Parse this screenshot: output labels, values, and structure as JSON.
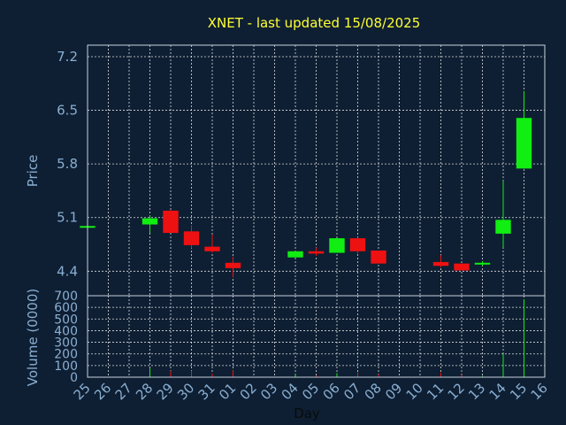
{
  "chart_data": [
    {
      "type": "candlestick",
      "title": "XNET - last updated 15/08/2025",
      "ylabel": "Price",
      "ylim": [
        4.08,
        7.35
      ],
      "yticks": [
        "7.2",
        "6.5",
        "5.8",
        "5.1",
        "4.4"
      ],
      "ytick_values": [
        7.2,
        6.5,
        5.8,
        5.1,
        4.4
      ],
      "grid": true,
      "colors": {
        "up": "#11ee11",
        "down": "#ee1111",
        "background": "#0e1f33",
        "text": "#8aaed1",
        "title": "#ffff33",
        "grid": "#ffffff"
      },
      "candles": [
        {
          "day": "25",
          "open": 4.97,
          "high": 4.99,
          "low": 4.95,
          "close": 4.99
        },
        {
          "day": "28",
          "open": 5.01,
          "high": 5.13,
          "low": 4.9,
          "close": 5.09
        },
        {
          "day": "29",
          "open": 5.19,
          "high": 5.2,
          "low": 4.9,
          "close": 4.9
        },
        {
          "day": "30",
          "open": 4.92,
          "high": 5.0,
          "low": 4.7,
          "close": 4.74
        },
        {
          "day": "31",
          "open": 4.72,
          "high": 4.88,
          "low": 4.64,
          "close": 4.66
        },
        {
          "day": "01",
          "open": 4.51,
          "high": 4.59,
          "low": 4.32,
          "close": 4.44
        },
        {
          "day": "04",
          "open": 4.58,
          "high": 4.66,
          "low": 4.58,
          "close": 4.66
        },
        {
          "day": "05",
          "open": 4.66,
          "high": 4.71,
          "low": 4.6,
          "close": 4.63
        },
        {
          "day": "06",
          "open": 4.64,
          "high": 4.83,
          "low": 4.64,
          "close": 4.83
        },
        {
          "day": "07",
          "open": 4.83,
          "high": 4.84,
          "low": 4.63,
          "close": 4.66
        },
        {
          "day": "08",
          "open": 4.67,
          "high": 4.67,
          "low": 4.5,
          "close": 4.5
        },
        {
          "day": "11",
          "open": 4.52,
          "high": 4.61,
          "low": 4.45,
          "close": 4.47
        },
        {
          "day": "12",
          "open": 4.5,
          "high": 4.5,
          "low": 4.41,
          "close": 4.41
        },
        {
          "day": "13",
          "open": 4.49,
          "high": 4.53,
          "low": 4.47,
          "close": 4.51
        },
        {
          "day": "14",
          "open": 4.89,
          "high": 5.58,
          "low": 4.71,
          "close": 5.07
        },
        {
          "day": "15",
          "open": 5.74,
          "high": 6.75,
          "low": 5.74,
          "close": 6.4
        }
      ]
    },
    {
      "type": "bar",
      "ylabel": "Volume (0000)",
      "xlabel": "Day",
      "ylim": [
        0,
        700
      ],
      "yticks": [
        "700",
        "600",
        "500",
        "400",
        "300",
        "200",
        "100",
        "0"
      ],
      "ytick_values": [
        700,
        600,
        500,
        400,
        300,
        200,
        100,
        0
      ],
      "grid": true,
      "categories": [
        "25",
        "26",
        "27",
        "28",
        "29",
        "30",
        "31",
        "01",
        "02",
        "03",
        "04",
        "05",
        "06",
        "07",
        "08",
        "09",
        "10",
        "11",
        "12",
        "13",
        "14",
        "15",
        "16"
      ],
      "volumes": [
        {
          "day": "25",
          "value": 3,
          "dir": "up"
        },
        {
          "day": "28",
          "value": 75,
          "dir": "up"
        },
        {
          "day": "29",
          "value": 55,
          "dir": "down"
        },
        {
          "day": "30",
          "value": 55,
          "dir": "down"
        },
        {
          "day": "31",
          "value": 30,
          "dir": "down"
        },
        {
          "day": "01",
          "value": 60,
          "dir": "down"
        },
        {
          "day": "04",
          "value": 20,
          "dir": "up"
        },
        {
          "day": "05",
          "value": 15,
          "dir": "down"
        },
        {
          "day": "06",
          "value": 35,
          "dir": "up"
        },
        {
          "day": "07",
          "value": 40,
          "dir": "down"
        },
        {
          "day": "08",
          "value": 25,
          "dir": "down"
        },
        {
          "day": "11",
          "value": 40,
          "dir": "down"
        },
        {
          "day": "12",
          "value": 20,
          "dir": "down"
        },
        {
          "day": "13",
          "value": 10,
          "dir": "up"
        },
        {
          "day": "14",
          "value": 200,
          "dir": "up"
        },
        {
          "day": "15",
          "value": 670,
          "dir": "up"
        }
      ]
    }
  ]
}
